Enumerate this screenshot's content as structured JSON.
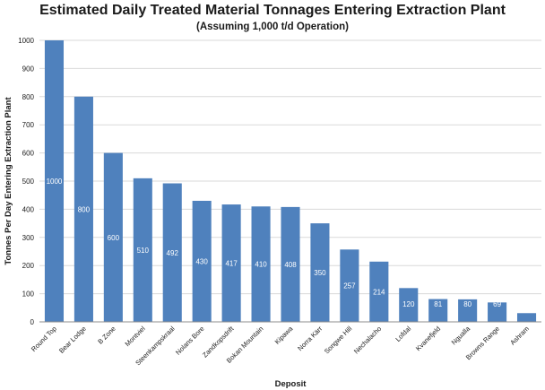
{
  "chart_data": {
    "type": "bar",
    "title": "Estimated Daily Treated Material Tonnages Entering Extraction Plant",
    "subtitle": "(Assuming 1,000 t/d Operation)",
    "xlabel": "Deposit",
    "ylabel": "Tonnes Per Day Entering Extraction Plant",
    "ylim": [
      0,
      1000
    ],
    "yticks": [
      0,
      100,
      200,
      300,
      400,
      500,
      600,
      700,
      800,
      900,
      1000
    ],
    "grid": true,
    "legend": "none",
    "bar_color": "#4f81bd",
    "categories": [
      "Round Top",
      "Bear Lodge",
      "B Zone",
      "Montviel",
      "Steenkampskraal",
      "Nolans Bore",
      "Zandkopsdrift",
      "Bokan Mountain",
      "Kipawa",
      "Norra Kärr",
      "Songwe Hill",
      "Nechalacho",
      "Lofdal",
      "Kvanefjeld",
      "Ngualla",
      "Browns Range",
      "Ashram"
    ],
    "values": [
      1000,
      800,
      600,
      510,
      492,
      430,
      417,
      410,
      408,
      350,
      257,
      214,
      120,
      81,
      80,
      69,
      31
    ]
  }
}
